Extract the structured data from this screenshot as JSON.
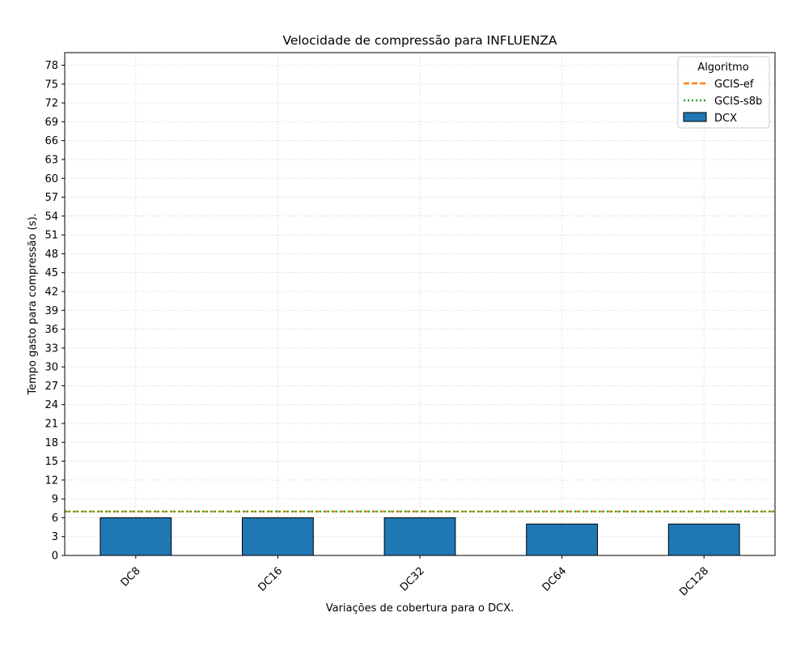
{
  "chart_data": {
    "type": "bar",
    "title": "Velocidade de compressão para  INFLUENZA",
    "xlabel": "Variações de cobertura para o DCX.",
    "ylabel": "Tempo gasto para compressão (s).",
    "ylim": [
      0,
      80
    ],
    "yticks": [
      0,
      3,
      6,
      9,
      12,
      15,
      18,
      21,
      24,
      27,
      30,
      33,
      36,
      39,
      42,
      45,
      48,
      51,
      54,
      57,
      60,
      63,
      66,
      69,
      72,
      75,
      78
    ],
    "grid": true,
    "categories": [
      "DC8",
      "DC16",
      "DC32",
      "DC64",
      "DC128"
    ],
    "series": [
      {
        "name": "DCX",
        "values": [
          6,
          6,
          6,
          5,
          5
        ],
        "color": "#1f77b4",
        "edge_color": "#000000"
      }
    ],
    "reference_lines": [
      {
        "name": "GCIS-ef",
        "value": 7,
        "color": "#ff7f0e",
        "style": "dashed"
      },
      {
        "name": "GCIS-s8b",
        "value": 7,
        "color": "#2ca02c",
        "style": "dotted"
      }
    ],
    "legend": {
      "title": "Algoritmo",
      "placement": "top-right",
      "entries": [
        "GCIS-ef",
        "GCIS-s8b",
        "DCX"
      ]
    }
  }
}
